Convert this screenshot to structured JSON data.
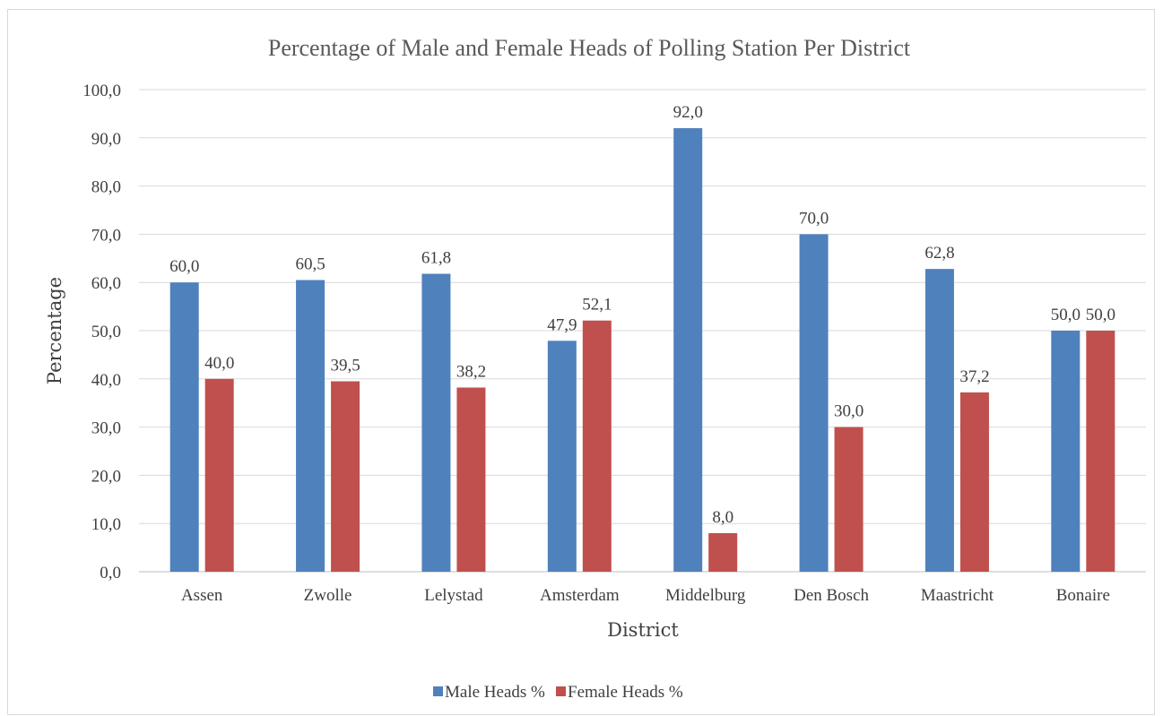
{
  "chart_data": {
    "type": "bar",
    "title": "Percentage of Male and Female Heads of Polling Station Per District",
    "xlabel": "District",
    "ylabel": "Percentage",
    "categories": [
      "Assen",
      "Zwolle",
      "Lelystad",
      "Amsterdam",
      "Middelburg",
      "Den Bosch",
      "Maastricht",
      "Bonaire"
    ],
    "series": [
      {
        "name": "Male Heads %",
        "color": "#4f81bd",
        "values": [
          60.0,
          60.5,
          61.8,
          47.9,
          92.0,
          70.0,
          62.8,
          50.0
        ],
        "labels": [
          "60,0",
          "60,5",
          "61,8",
          "47,9",
          "92,0",
          "70,0",
          "62,8",
          "50,0"
        ]
      },
      {
        "name": "Female Heads %",
        "color": "#c0504d",
        "values": [
          40.0,
          39.5,
          38.2,
          52.1,
          8.0,
          30.0,
          37.2,
          50.0
        ],
        "labels": [
          "40,0",
          "39,5",
          "38,2",
          "52,1",
          "8,0",
          "30,0",
          "37,2",
          "50,0"
        ]
      }
    ],
    "ylim": [
      0,
      100
    ],
    "yticks": [
      0,
      10,
      20,
      30,
      40,
      50,
      60,
      70,
      80,
      90,
      100
    ],
    "ytick_labels": [
      "0,0",
      "10,0",
      "20,0",
      "30,0",
      "40,0",
      "50,0",
      "60,0",
      "70,0",
      "80,0",
      "90,0",
      "100,0"
    ],
    "grid": true,
    "legend_position": "bottom"
  }
}
